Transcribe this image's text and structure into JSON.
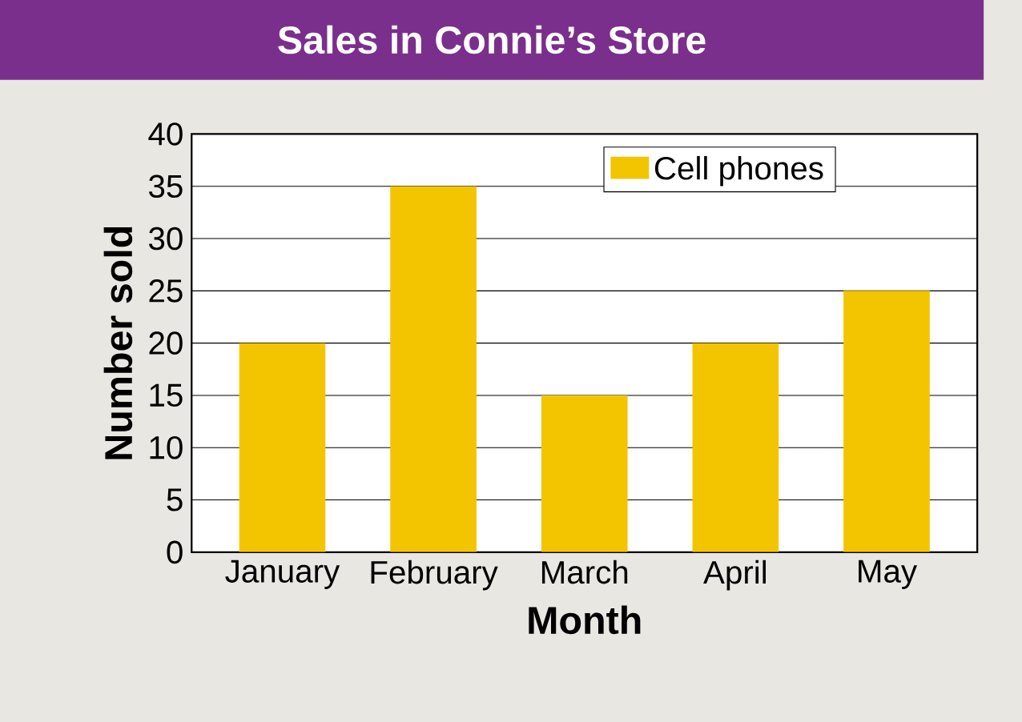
{
  "chart_data": {
    "type": "bar",
    "title": "Sales in Connie’s Store",
    "xlabel": "Month",
    "ylabel": "Number sold",
    "categories": [
      "January",
      "February",
      "March",
      "April",
      "May"
    ],
    "series": [
      {
        "name": "Cell phones",
        "color": "#f2c500",
        "values": [
          20,
          35,
          15,
          20,
          25
        ]
      }
    ],
    "ylim": [
      0,
      40
    ],
    "yticks": [
      0,
      5,
      10,
      15,
      20,
      25,
      30,
      35,
      40
    ],
    "grid": "y",
    "legend": "top right"
  }
}
